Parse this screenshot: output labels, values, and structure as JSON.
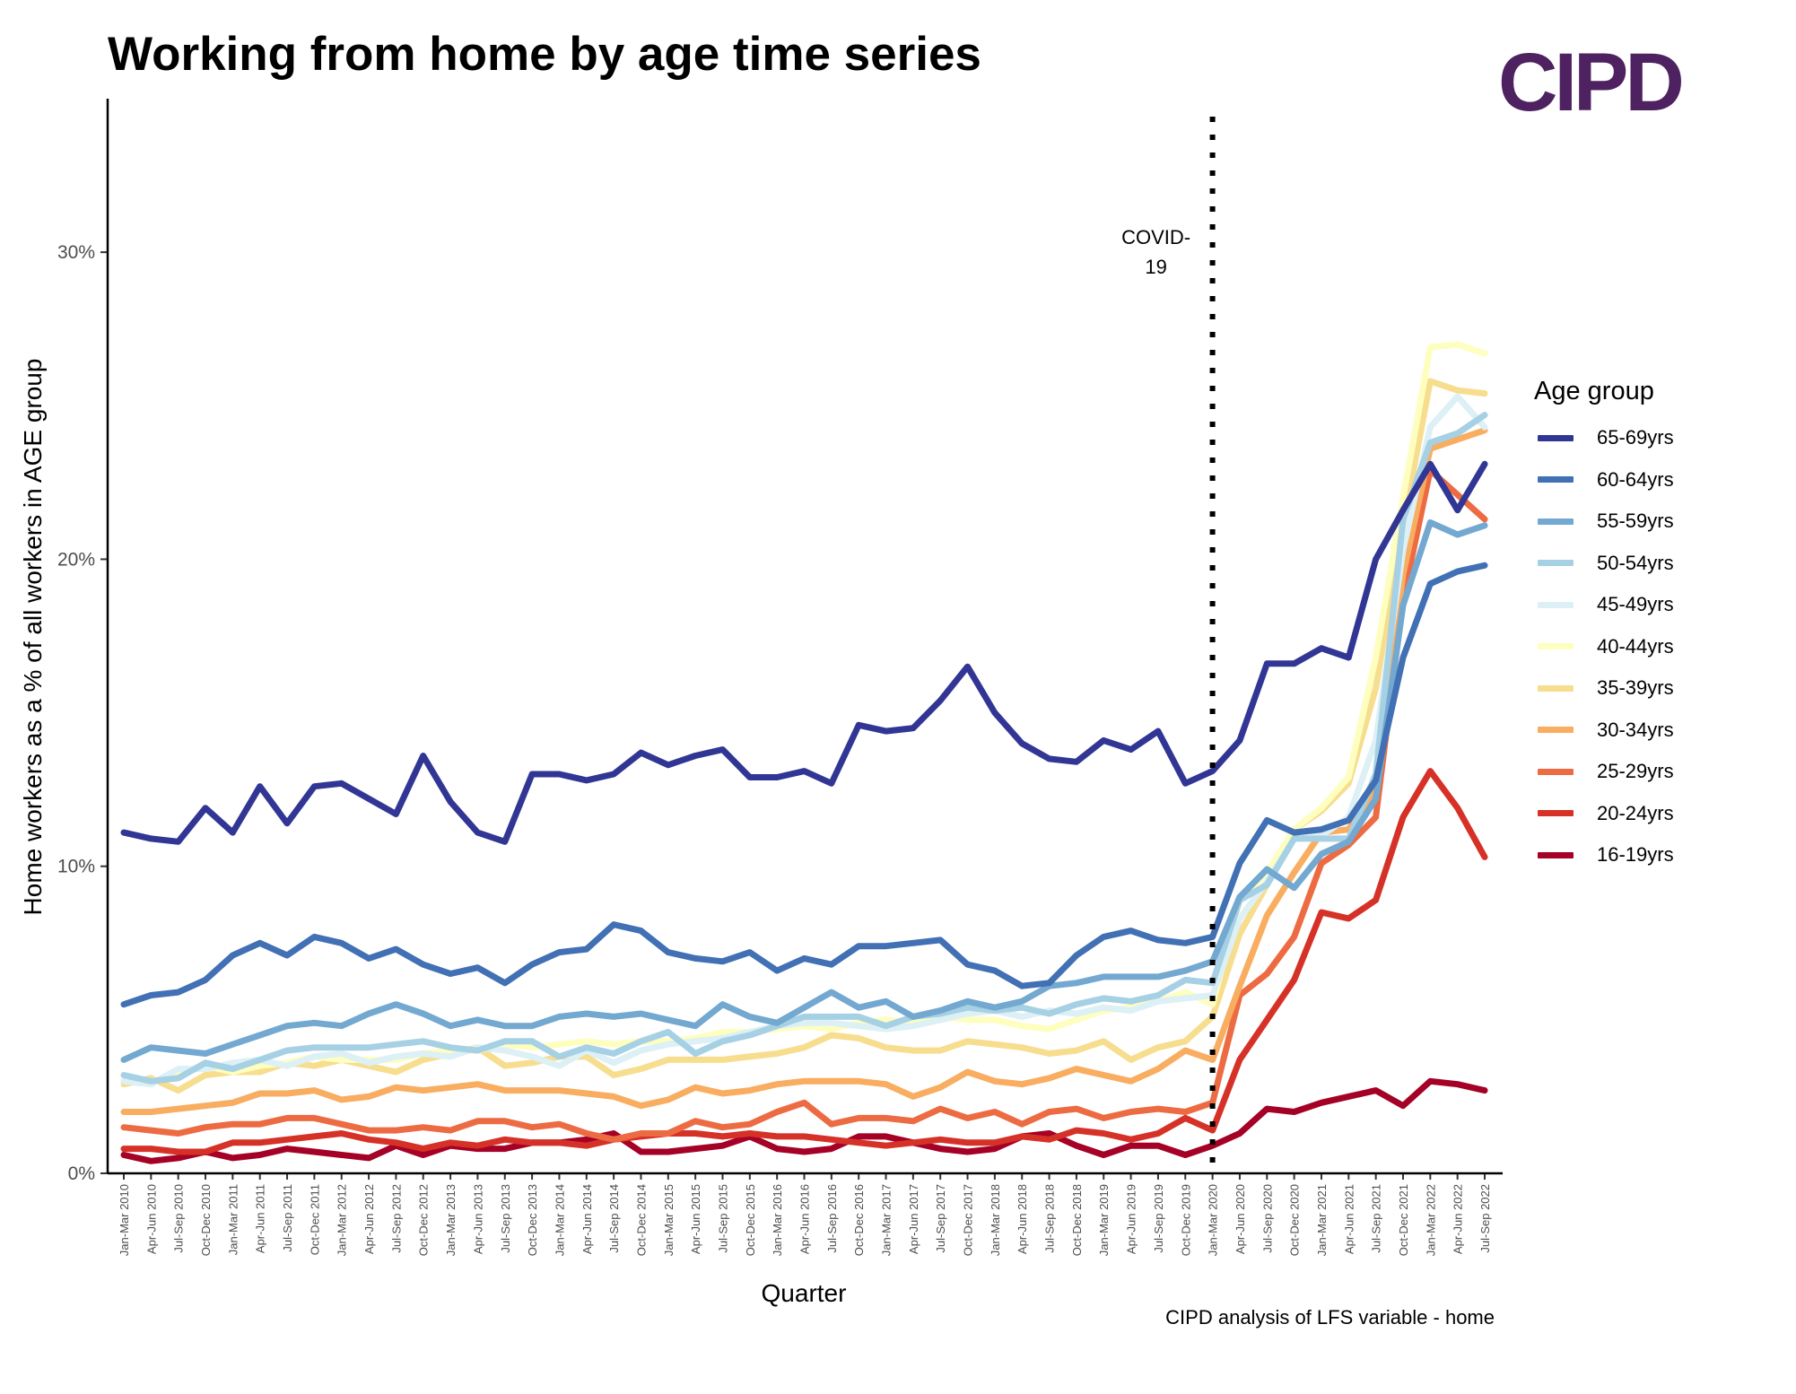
{
  "title": "Working from home by age time series",
  "logo_text": "CIPD",
  "caption": "CIPD analysis of LFS variable - home",
  "legend_title": "Age group",
  "annotation": {
    "line1": "COVID-",
    "line2": "19",
    "x_category": "Jan-Mar 2020"
  },
  "colors": {
    "65-69yrs": "#313695",
    "60-64yrs": "#4170b4",
    "55-59yrs": "#73a8d1",
    "50-54yrs": "#a6d0e4",
    "45-49yrs": "#dcf0f6",
    "40-44yrs": "#fefebe",
    "35-39yrs": "#f7dd8e",
    "30-34yrs": "#f8ad60",
    "25-29yrs": "#ed6b42",
    "20-24yrs": "#d63127",
    "16-19yrs": "#a50026"
  },
  "chart_data": {
    "type": "line",
    "title": "Working from home by age time series",
    "xlabel": "Quarter",
    "ylabel": "Home workers as a % of all workers in AGE group",
    "ylim": [
      0,
      35
    ],
    "yticks": [
      0,
      10,
      20,
      30
    ],
    "ytick_labels": [
      "0%",
      "10%",
      "20%",
      "30%"
    ],
    "grid": false,
    "legend_position": "right",
    "x": [
      "Jan-Mar 2010",
      "Apr-Jun 2010",
      "Jul-Sep 2010",
      "Oct-Dec 2010",
      "Jan-Mar 2011",
      "Apr-Jun 2011",
      "Jul-Sep 2011",
      "Oct-Dec 2011",
      "Jan-Mar 2012",
      "Apr-Jun 2012",
      "Jul-Sep 2012",
      "Oct-Dec 2012",
      "Jan-Mar 2013",
      "Apr-Jun 2013",
      "Jul-Sep 2013",
      "Oct-Dec 2013",
      "Jan-Mar 2014",
      "Apr-Jun 2014",
      "Jul-Sep 2014",
      "Oct-Dec 2014",
      "Jan-Mar 2015",
      "Apr-Jun 2015",
      "Jul-Sep 2015",
      "Oct-Dec 2015",
      "Jan-Mar 2016",
      "Apr-Jun 2016",
      "Jul-Sep 2016",
      "Oct-Dec 2016",
      "Jan-Mar 2017",
      "Apr-Jun 2017",
      "Jul-Sep 2017",
      "Oct-Dec 2017",
      "Jan-Mar 2018",
      "Apr-Jun 2018",
      "Jul-Sep 2018",
      "Oct-Dec 2018",
      "Jan-Mar 2019",
      "Apr-Jun 2019",
      "Jul-Sep 2019",
      "Oct-Dec 2019",
      "Jan-Mar 2020",
      "Apr-Jun 2020",
      "Jul-Sep 2020",
      "Oct-Dec 2020",
      "Jan-Mar 2021",
      "Apr-Jun 2021",
      "Jul-Sep 2021",
      "Oct-Dec 2021",
      "Jan-Mar 2022",
      "Apr-Jun 2022",
      "Jul-Sep 2022"
    ],
    "series": [
      {
        "name": "16-19yrs",
        "values": [
          0.6,
          0.4,
          0.5,
          0.7,
          0.5,
          0.6,
          0.8,
          0.7,
          0.6,
          0.5,
          0.9,
          0.6,
          0.9,
          0.8,
          0.8,
          1.0,
          1.0,
          1.1,
          1.3,
          0.7,
          0.7,
          0.8,
          0.9,
          1.2,
          0.8,
          0.7,
          0.8,
          1.2,
          1.2,
          1.0,
          0.8,
          0.7,
          0.8,
          1.2,
          1.3,
          0.9,
          0.6,
          0.9,
          0.9,
          0.6,
          0.9,
          1.3,
          2.1,
          2.0,
          2.3,
          2.5,
          2.7,
          2.2,
          3.0,
          2.9,
          2.7
        ]
      },
      {
        "name": "20-24yrs",
        "values": [
          0.8,
          0.8,
          0.7,
          0.7,
          1.0,
          1.0,
          1.1,
          1.2,
          1.3,
          1.1,
          1.0,
          0.8,
          1.0,
          0.9,
          1.1,
          1.0,
          1.0,
          0.9,
          1.1,
          1.2,
          1.3,
          1.3,
          1.2,
          1.3,
          1.2,
          1.2,
          1.1,
          1.0,
          0.9,
          1.0,
          1.1,
          1.0,
          1.0,
          1.2,
          1.1,
          1.4,
          1.3,
          1.1,
          1.3,
          1.8,
          1.4,
          3.7,
          5.0,
          6.3,
          8.5,
          8.3,
          8.9,
          11.6,
          13.1,
          11.9,
          10.3
        ]
      },
      {
        "name": "25-29yrs",
        "values": [
          1.5,
          1.4,
          1.3,
          1.5,
          1.6,
          1.6,
          1.8,
          1.8,
          1.6,
          1.4,
          1.4,
          1.5,
          1.4,
          1.7,
          1.7,
          1.5,
          1.6,
          1.3,
          1.1,
          1.3,
          1.3,
          1.7,
          1.5,
          1.6,
          2.0,
          2.3,
          1.6,
          1.8,
          1.8,
          1.7,
          2.1,
          1.8,
          2.0,
          1.6,
          2.0,
          2.1,
          1.8,
          2.0,
          2.1,
          2.0,
          2.3,
          5.8,
          6.5,
          7.7,
          10.1,
          10.7,
          11.6,
          18.7,
          22.9,
          22.1,
          21.3
        ]
      },
      {
        "name": "30-34yrs",
        "values": [
          2.0,
          2.0,
          2.1,
          2.2,
          2.3,
          2.6,
          2.6,
          2.7,
          2.4,
          2.5,
          2.8,
          2.7,
          2.8,
          2.9,
          2.7,
          2.7,
          2.7,
          2.6,
          2.5,
          2.2,
          2.4,
          2.8,
          2.6,
          2.7,
          2.9,
          3.0,
          3.0,
          3.0,
          2.9,
          2.5,
          2.8,
          3.3,
          3.0,
          2.9,
          3.1,
          3.4,
          3.2,
          3.0,
          3.4,
          4.0,
          3.7,
          6.1,
          8.4,
          9.8,
          11.1,
          11.2,
          12.5,
          19.5,
          23.6,
          23.9,
          24.2
        ]
      },
      {
        "name": "35-39yrs",
        "values": [
          2.9,
          3.1,
          2.7,
          3.2,
          3.3,
          3.3,
          3.6,
          3.5,
          3.7,
          3.5,
          3.3,
          3.7,
          3.9,
          4.1,
          3.5,
          3.6,
          3.8,
          3.8,
          3.2,
          3.4,
          3.7,
          3.7,
          3.7,
          3.8,
          3.9,
          4.1,
          4.5,
          4.4,
          4.1,
          4.0,
          4.0,
          4.3,
          4.2,
          4.1,
          3.9,
          4.0,
          4.3,
          3.7,
          4.1,
          4.3,
          5.1,
          7.8,
          9.4,
          11.2,
          11.8,
          12.7,
          15.8,
          21.1,
          25.8,
          25.5,
          25.4
        ]
      },
      {
        "name": "40-44yrs",
        "values": [
          3.1,
          3.0,
          3.2,
          3.5,
          3.3,
          3.5,
          3.6,
          3.8,
          3.7,
          3.7,
          3.7,
          3.9,
          4.0,
          4.0,
          4.2,
          4.1,
          4.2,
          4.3,
          4.2,
          4.3,
          4.3,
          4.4,
          4.6,
          4.6,
          4.7,
          4.8,
          4.7,
          4.9,
          5.0,
          4.9,
          5.1,
          5.0,
          5.0,
          4.8,
          4.7,
          5.0,
          5.3,
          5.4,
          5.6,
          5.9,
          5.5,
          8.9,
          9.8,
          11.2,
          11.9,
          12.9,
          16.8,
          22.0,
          26.9,
          27.0,
          26.7
        ]
      },
      {
        "name": "45-49yrs",
        "values": [
          3.0,
          2.9,
          3.4,
          3.4,
          3.6,
          3.7,
          3.5,
          3.8,
          3.9,
          3.6,
          3.8,
          3.9,
          3.8,
          4.1,
          4.0,
          3.8,
          3.5,
          4.0,
          3.6,
          4.0,
          4.2,
          4.3,
          4.4,
          4.6,
          4.8,
          4.9,
          4.9,
          4.8,
          4.7,
          4.8,
          5.0,
          5.2,
          5.3,
          5.1,
          5.3,
          5.2,
          5.4,
          5.3,
          5.6,
          5.7,
          5.8,
          8.3,
          9.5,
          10.9,
          11.0,
          11.6,
          14.1,
          20.3,
          24.3,
          25.3,
          24.3
        ]
      },
      {
        "name": "50-54yrs",
        "values": [
          3.2,
          3.0,
          3.1,
          3.6,
          3.4,
          3.7,
          4.0,
          4.1,
          4.1,
          4.1,
          4.2,
          4.3,
          4.1,
          4.0,
          4.3,
          4.3,
          3.8,
          4.1,
          3.9,
          4.3,
          4.6,
          3.9,
          4.3,
          4.5,
          4.8,
          5.1,
          5.1,
          5.1,
          4.8,
          5.1,
          5.2,
          5.4,
          5.3,
          5.4,
          5.2,
          5.5,
          5.7,
          5.6,
          5.8,
          6.3,
          6.2,
          8.9,
          9.4,
          10.9,
          10.9,
          10.9,
          13.0,
          21.3,
          23.8,
          24.1,
          24.7
        ]
      },
      {
        "name": "55-59yrs",
        "values": [
          3.7,
          4.1,
          4.0,
          3.9,
          4.2,
          4.5,
          4.8,
          4.9,
          4.8,
          5.2,
          5.5,
          5.2,
          4.8,
          5.0,
          4.8,
          4.8,
          5.1,
          5.2,
          5.1,
          5.2,
          5.0,
          4.8,
          5.5,
          5.1,
          4.9,
          5.4,
          5.9,
          5.4,
          5.6,
          5.1,
          5.3,
          5.6,
          5.4,
          5.6,
          6.1,
          6.2,
          6.4,
          6.4,
          6.4,
          6.6,
          6.9,
          9.0,
          9.9,
          9.3,
          10.4,
          10.8,
          12.2,
          18.5,
          21.2,
          20.8,
          21.1
        ]
      },
      {
        "name": "60-64yrs",
        "values": [
          5.5,
          5.8,
          5.9,
          6.3,
          7.1,
          7.5,
          7.1,
          7.7,
          7.5,
          7.0,
          7.3,
          6.8,
          6.5,
          6.7,
          6.2,
          6.8,
          7.2,
          7.3,
          8.1,
          7.9,
          7.2,
          7.0,
          6.9,
          7.2,
          6.6,
          7.0,
          6.8,
          7.4,
          7.4,
          7.5,
          7.6,
          6.8,
          6.6,
          6.1,
          6.2,
          7.1,
          7.7,
          7.9,
          7.6,
          7.5,
          7.7,
          10.1,
          11.5,
          11.1,
          11.2,
          11.5,
          12.8,
          16.8,
          19.2,
          19.6,
          19.8
        ]
      },
      {
        "name": "65-69yrs",
        "values": [
          11.1,
          10.9,
          10.8,
          11.9,
          11.1,
          12.6,
          11.4,
          12.6,
          12.7,
          12.2,
          11.7,
          13.6,
          12.1,
          11.1,
          10.8,
          13.0,
          13.0,
          12.8,
          13.0,
          13.7,
          13.3,
          13.6,
          13.8,
          12.9,
          12.9,
          13.1,
          12.7,
          14.6,
          14.4,
          14.5,
          15.4,
          16.5,
          15.0,
          14.0,
          13.5,
          13.4,
          14.1,
          13.8,
          14.4,
          12.7,
          13.1,
          14.1,
          16.6,
          16.6,
          17.1,
          16.8,
          20.0,
          21.6,
          23.1,
          21.6,
          23.1
        ]
      }
    ]
  }
}
